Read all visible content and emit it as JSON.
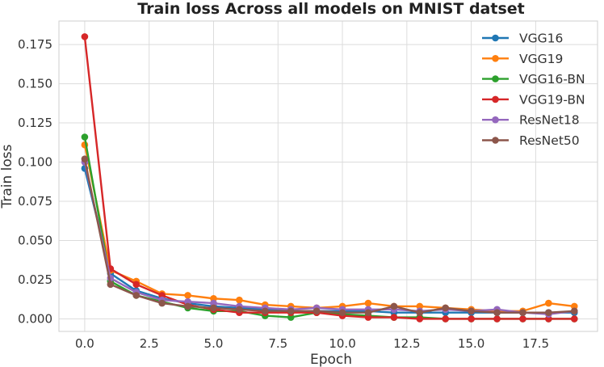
{
  "chart_data": {
    "type": "line",
    "title": "Train loss Across all models on MNIST datset",
    "xlabel": "Epoch",
    "ylabel": "Train loss",
    "xlim": [
      -1,
      19.9
    ],
    "ylim": [
      -0.008,
      0.19
    ],
    "x_ticks": [
      0.0,
      2.5,
      5.0,
      7.5,
      10.0,
      12.5,
      15.0,
      17.5
    ],
    "y_ticks": [
      0.0,
      0.025,
      0.05,
      0.075,
      0.1,
      0.125,
      0.15,
      0.175
    ],
    "grid": true,
    "legend_position": "top-right",
    "x": [
      0,
      1,
      2,
      3,
      4,
      5,
      6,
      7,
      8,
      9,
      10,
      11,
      12,
      13,
      14,
      15,
      16,
      17,
      18,
      19
    ],
    "series": [
      {
        "name": "VGG16",
        "color": "#1f77b4",
        "values": [
          0.096,
          0.029,
          0.018,
          0.013,
          0.01,
          0.008,
          0.007,
          0.006,
          0.005,
          0.005,
          0.005,
          0.005,
          0.004,
          0.004,
          0.004,
          0.004,
          0.004,
          0.004,
          0.004,
          0.004
        ]
      },
      {
        "name": "VGG19",
        "color": "#ff7f0e",
        "values": [
          0.111,
          0.031,
          0.024,
          0.016,
          0.015,
          0.013,
          0.012,
          0.009,
          0.008,
          0.007,
          0.008,
          0.01,
          0.008,
          0.008,
          0.007,
          0.006,
          0.005,
          0.005,
          0.01,
          0.008
        ]
      },
      {
        "name": "VGG16-BN",
        "color": "#2ca02c",
        "values": [
          0.116,
          0.024,
          0.015,
          0.011,
          0.007,
          0.005,
          0.005,
          0.002,
          0.001,
          0.004,
          0.003,
          0.002,
          0.001,
          0.001,
          0.0,
          0.0,
          0.0,
          0.0,
          0.0,
          0.0
        ]
      },
      {
        "name": "VGG19-BN",
        "color": "#d62728",
        "values": [
          0.18,
          0.032,
          0.022,
          0.015,
          0.009,
          0.006,
          0.004,
          0.004,
          0.004,
          0.004,
          0.002,
          0.001,
          0.001,
          0.0,
          0.0,
          0.0,
          0.0,
          0.0,
          0.0,
          0.0
        ]
      },
      {
        "name": "ResNet18",
        "color": "#9467bd",
        "values": [
          0.1,
          0.026,
          0.017,
          0.012,
          0.011,
          0.01,
          0.008,
          0.007,
          0.006,
          0.007,
          0.006,
          0.006,
          0.006,
          0.005,
          0.006,
          0.005,
          0.006,
          0.004,
          0.003,
          0.005
        ]
      },
      {
        "name": "ResNet50",
        "color": "#8c564b",
        "values": [
          0.102,
          0.022,
          0.015,
          0.01,
          0.008,
          0.007,
          0.006,
          0.005,
          0.005,
          0.005,
          0.004,
          0.004,
          0.008,
          0.004,
          0.007,
          0.005,
          0.004,
          0.004,
          0.004,
          0.005
        ]
      }
    ]
  }
}
